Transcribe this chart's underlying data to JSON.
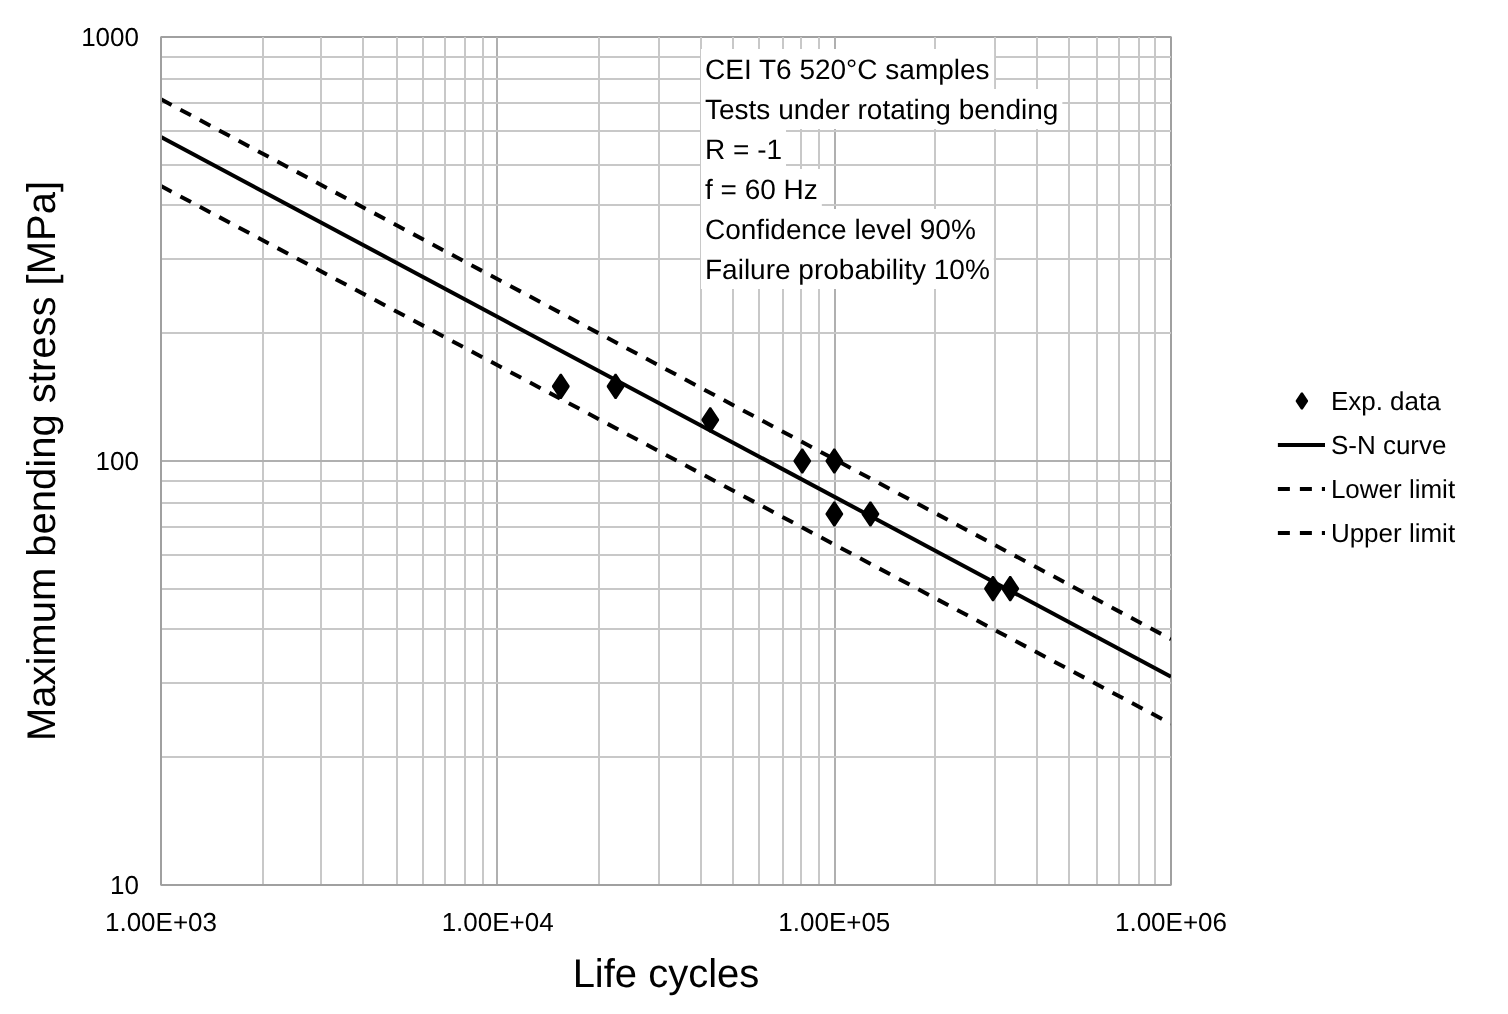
{
  "chart_data": {
    "type": "scatter",
    "xlabel": "Life cycles",
    "ylabel": "Maximum bending stress [MPa]",
    "log": "xy",
    "grid": true,
    "legend": "right",
    "xlim": [
      1000,
      1000000
    ],
    "ylim": [
      10,
      1000
    ],
    "xticks": [
      {
        "value": 1000,
        "label": "1.00E+03"
      },
      {
        "value": 10000,
        "label": "1.00E+04"
      },
      {
        "value": 100000,
        "label": "1.00E+05"
      },
      {
        "value": 1000000,
        "label": "1.00E+06"
      }
    ],
    "yticks": [
      10,
      100,
      1000
    ],
    "annotations": [
      "CEI T6 520°C samples",
      "Tests under rotating bending",
      "R = -1",
      "f = 60 Hz",
      "Confidence level 90%",
      "Failure probability 10%"
    ],
    "series": [
      {
        "name": "Exp. data",
        "marker": "diamond",
        "color": "#000000",
        "x": [
          15400,
          22400,
          42800,
          80300,
          100000,
          100000,
          128000,
          296000,
          333000
        ],
        "values": [
          150,
          150,
          125,
          100,
          100,
          75,
          75,
          50,
          50
        ]
      },
      {
        "name": "S-N curve",
        "type": "line",
        "line_style": "solid",
        "marker": "none",
        "color": "#000000",
        "x": [
          1000,
          1000000
        ],
        "values": [
          581,
          31
        ]
      },
      {
        "name": "Lower limit",
        "type": "line",
        "line_style": "dashed",
        "marker": "none",
        "color": "#000000",
        "x": [
          1000,
          1000000
        ],
        "values": [
          445,
          24
        ]
      },
      {
        "name": "Upper limit",
        "type": "line",
        "line_style": "dashed",
        "marker": "none",
        "color": "#000000",
        "x": [
          1000,
          1000000
        ],
        "values": [
          713,
          38
        ]
      }
    ]
  }
}
